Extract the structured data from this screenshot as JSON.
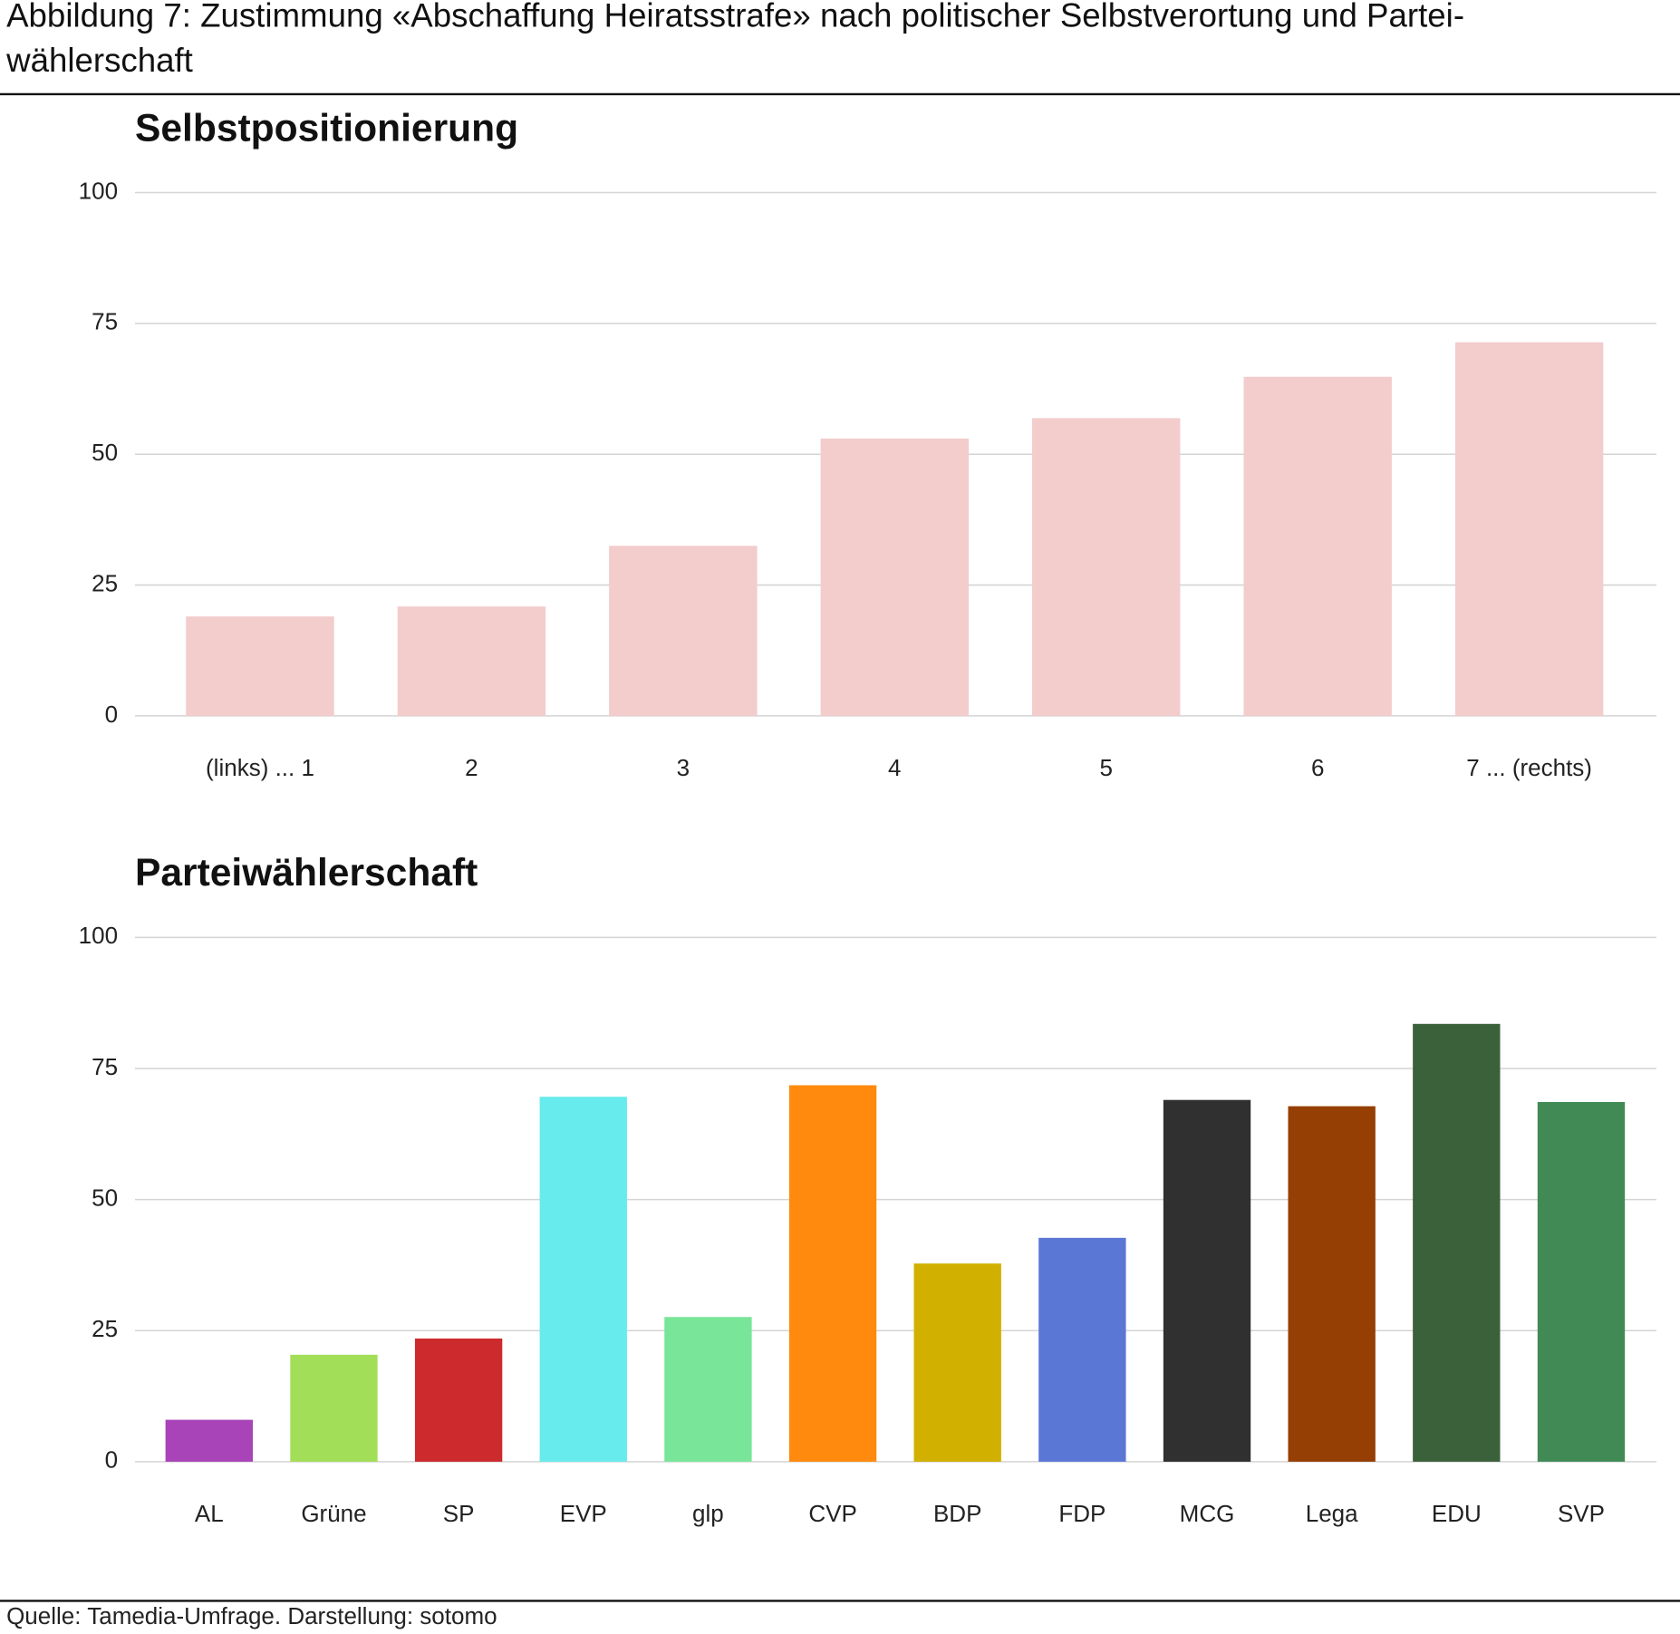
{
  "header": {
    "title": "Abbildung 7: Zustimmung «Abschaffung Heiratsstrafe» nach politischer Selbstverortung und Partei-\nwählerschaft"
  },
  "chart_data": [
    {
      "type": "bar",
      "title": "Selbstpositionierung",
      "categories": [
        "(links) ... 1",
        "2",
        "3",
        "4",
        "5",
        "6",
        "7 ... (rechts)"
      ],
      "values": [
        19,
        20.9,
        32.5,
        53,
        56.9,
        64.8,
        71.4
      ],
      "color": "#f3cccc",
      "ylim": [
        0,
        100
      ],
      "yticks": [
        0,
        25,
        50,
        75,
        100
      ],
      "grid": true
    },
    {
      "type": "bar",
      "title": "Parteiwählerschaft",
      "categories": [
        "AL",
        "Grüne",
        "SP",
        "EVP",
        "glp",
        "CVP",
        "BDP",
        "FDP",
        "MCG",
        "Lega",
        "EDU",
        "SVP"
      ],
      "values": [
        8,
        20.4,
        23.5,
        69.6,
        27.6,
        71.8,
        37.8,
        42.7,
        69,
        67.8,
        83.5,
        68.6
      ],
      "colors": [
        "#a844b8",
        "#a3de58",
        "#cc2a2d",
        "#67ebec",
        "#79e598",
        "#ff8a0d",
        "#d1b000",
        "#5b77d6",
        "#303030",
        "#953f05",
        "#3b613a",
        "#428a55"
      ],
      "ylim": [
        0,
        100
      ],
      "yticks": [
        0,
        25,
        50,
        75,
        100
      ],
      "grid": true
    }
  ],
  "footer": {
    "source": "Quelle: Tamedia-Umfrage. Darstellung: sotomo"
  }
}
